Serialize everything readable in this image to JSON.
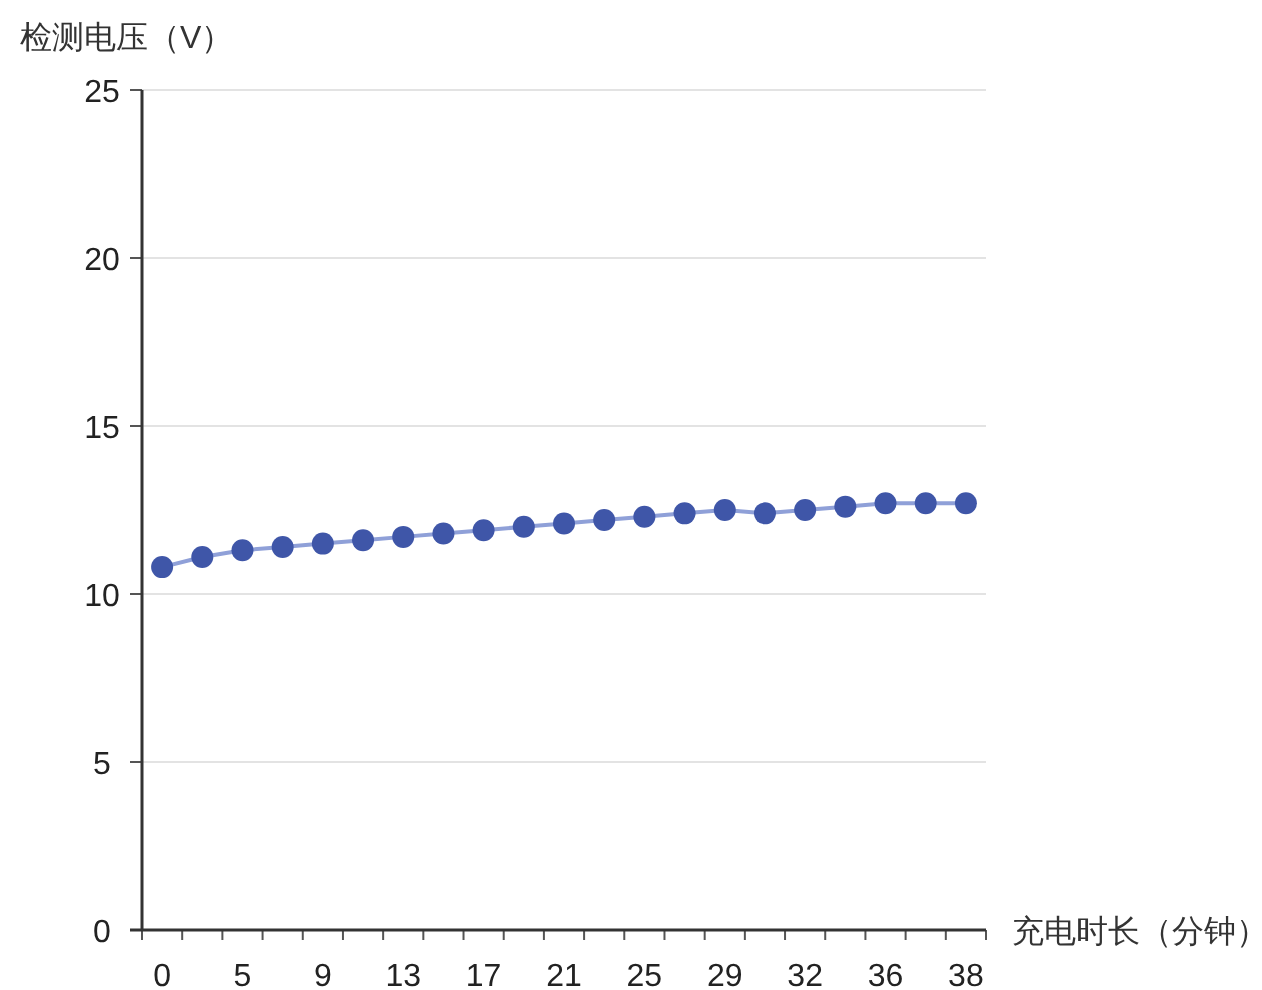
{
  "chart_data": {
    "type": "line",
    "xlabel": "充电时长（分钟）",
    "ylabel": "检测电压（V）",
    "categories": [
      "0",
      null,
      "5",
      null,
      "9",
      null,
      "13",
      null,
      "17",
      null,
      "21",
      null,
      "25",
      null,
      "29",
      null,
      "32",
      null,
      "36",
      null,
      "38"
    ],
    "series": [
      {
        "color": "#3f56a8",
        "values": [
          10.8,
          11.1,
          11.3,
          11.4,
          11.5,
          11.6,
          11.7,
          11.8,
          11.9,
          12.0,
          12.1,
          12.2,
          12.3,
          12.4,
          12.5,
          12.4,
          12.5,
          12.6,
          12.7,
          12.7,
          12.7
        ]
      }
    ],
    "ylim": [
      0,
      25
    ],
    "yticks": [
      0,
      5,
      10,
      15,
      20,
      25
    ],
    "grid": "y",
    "marker": "circle"
  }
}
